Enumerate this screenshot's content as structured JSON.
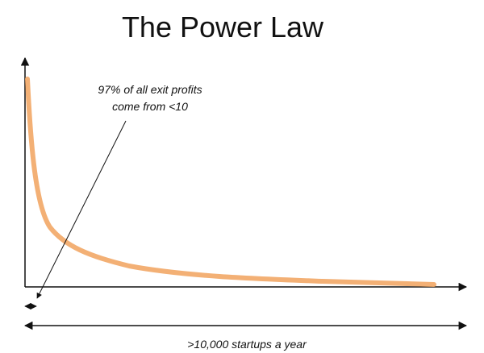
{
  "title": "The Power Law",
  "annotation": {
    "lines": [
      "97% of all exit profits",
      "come from <10"
    ]
  },
  "x_axis_label": ">10,000 startups a year"
}
